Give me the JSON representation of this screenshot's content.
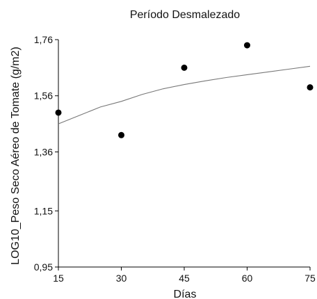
{
  "chart_data": {
    "type": "scatter",
    "title": "Período Desmalezado",
    "xlabel": "Días",
    "ylabel": "LOG10_Peso Seco Aéreo de Tomate (g/m2)",
    "xlim": [
      15,
      75
    ],
    "ylim": [
      0.95,
      1.76
    ],
    "x_ticks": [
      15,
      30,
      45,
      60,
      75
    ],
    "y_ticks": [
      0.95,
      1.15,
      1.36,
      1.56,
      1.76
    ],
    "x_tick_labels": [
      "15",
      "30",
      "45",
      "60",
      "75"
    ],
    "y_tick_labels": [
      "0,95",
      "1,15",
      "1,36",
      "1,56",
      "1,76"
    ],
    "points": [
      {
        "x": 15,
        "y": 1.5
      },
      {
        "x": 30,
        "y": 1.42
      },
      {
        "x": 45,
        "y": 1.66
      },
      {
        "x": 60,
        "y": 1.74
      },
      {
        "x": 75,
        "y": 1.59
      }
    ],
    "fit_curve": {
      "x": [
        15,
        20,
        25,
        30,
        35,
        40,
        45,
        50,
        55,
        60,
        65,
        70,
        75
      ],
      "y": [
        1.46,
        1.49,
        1.52,
        1.54,
        1.565,
        1.585,
        1.6,
        1.613,
        1.625,
        1.635,
        1.645,
        1.655,
        1.665
      ]
    },
    "grid": false,
    "legend": "none",
    "colors": {
      "points": "#000000",
      "curve": "#777777",
      "axes": "#000000"
    }
  }
}
